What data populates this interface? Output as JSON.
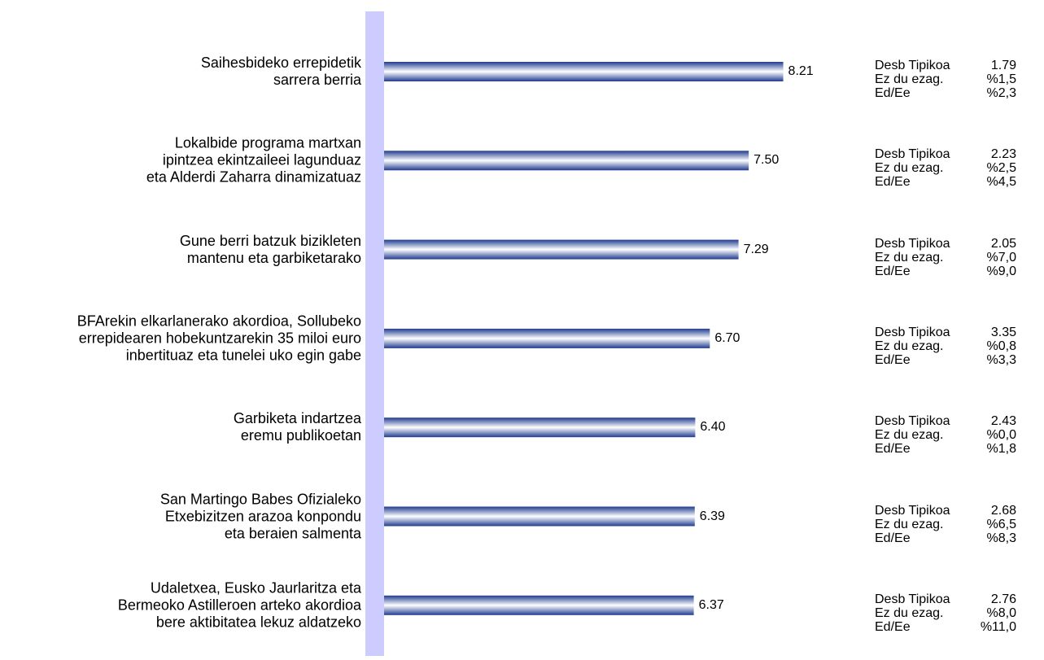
{
  "chart_data": {
    "type": "bar",
    "orientation": "horizontal",
    "title": "",
    "xlabel": "",
    "ylabel": "",
    "xlim": [
      0,
      10
    ],
    "grid": false,
    "categories": [
      "Saihesbideko errepidetik\nsarrera berria",
      "Lokalbide programa martxan\nipintzea ekintzaileei lagunduaz\neta Alderdi Zaharra dinamizatuaz",
      "Gune berri batzuk bizikleten\nmantenu eta garbiketarako",
      "BFArekin elkarlanerako akordioa, Sollubeko\nerrepidearen hobekuntzarekin 35 miloi euro\ninbertituaz eta tunelei uko egin gabe",
      "Garbiketa indartzea\neremu publikoetan",
      "San Martingo Babes Ofizialeko\nEtxebizitzen arazoa konpondu\neta beraien salmenta",
      "Udaletxea, Eusko Jaurlaritza eta\nBermeoko Astilleroen arteko akordioa\nbere aktibitatea lekuz aldatzeko"
    ],
    "values": [
      8.21,
      7.5,
      7.29,
      6.7,
      6.4,
      6.39,
      6.37
    ],
    "value_labels": [
      "8.21",
      "7.50",
      "7.29",
      "6.70",
      "6.40",
      "6.39",
      "6.37"
    ],
    "stats_labels": [
      "Desb Tipikoa",
      "Ez du ezag.",
      "Ed/Ee"
    ],
    "stats": [
      [
        "1.79",
        "%1,5",
        "%2,3"
      ],
      [
        "2.23",
        "%2,5",
        "%4,5"
      ],
      [
        "2.05",
        "%7,0",
        "%9,0"
      ],
      [
        "3.35",
        "%0,8",
        "%3,3"
      ],
      [
        "2.43",
        "%0,0",
        "%1,8"
      ],
      [
        "2.68",
        "%6,5",
        "%8,3"
      ],
      [
        "2.76",
        "%8,0",
        "%11,0"
      ]
    ],
    "colors": {
      "bar_dark": "#1f3b8f",
      "bar_light": "#ffffff",
      "axis_band": "#ccccff"
    }
  }
}
